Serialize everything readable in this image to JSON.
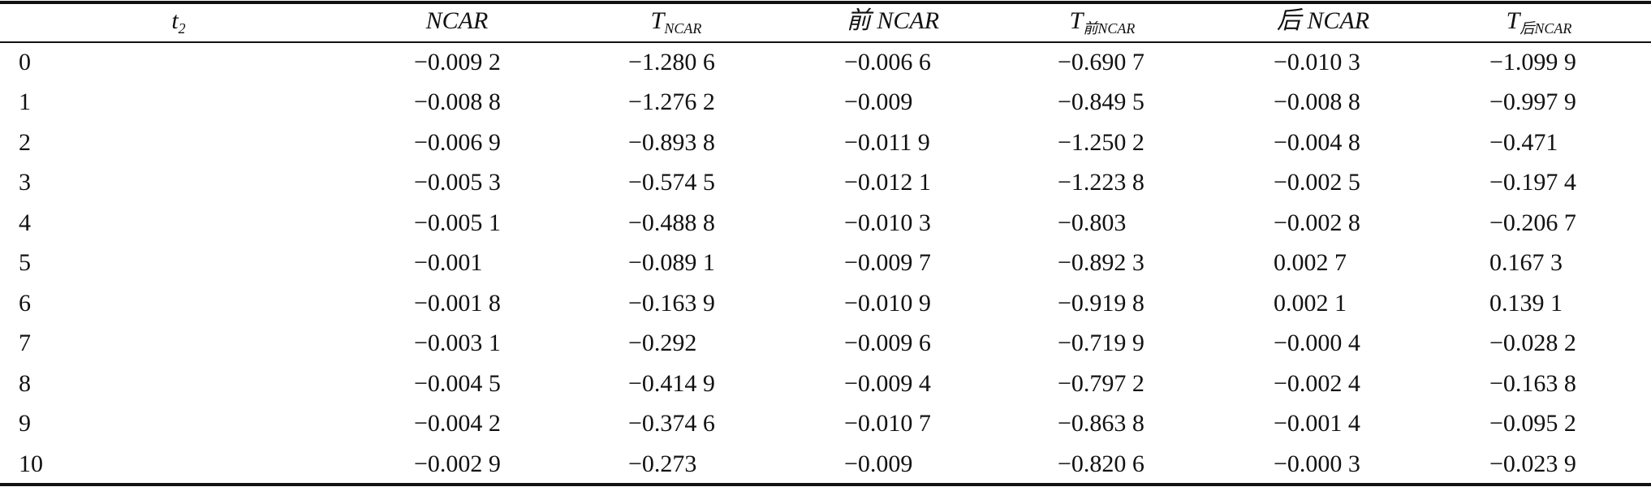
{
  "table": {
    "header": [
      {
        "text": "t",
        "sub": "2"
      },
      {
        "text": "NCAR"
      },
      {
        "text": "T",
        "sub": "NCAR"
      },
      {
        "text": "前 NCAR"
      },
      {
        "text": "T",
        "sub": "前NCAR"
      },
      {
        "text": "后 NCAR"
      },
      {
        "text": "T",
        "sub": "后NCAR"
      }
    ],
    "rows": [
      [
        "0",
        "−0.009 2",
        "−1.280 6",
        "−0.006 6",
        "−0.690 7",
        "−0.010 3",
        "−1.099 9"
      ],
      [
        "1",
        "−0.008 8",
        "−1.276 2",
        "−0.009",
        "−0.849 5",
        "−0.008 8",
        "−0.997 9"
      ],
      [
        "2",
        "−0.006 9",
        "−0.893 8",
        "−0.011 9",
        "−1.250 2",
        "−0.004 8",
        "−0.471"
      ],
      [
        "3",
        "−0.005 3",
        "−0.574 5",
        "−0.012 1",
        "−1.223 8",
        "−0.002 5",
        "−0.197 4"
      ],
      [
        "4",
        "−0.005 1",
        "−0.488 8",
        "−0.010 3",
        "−0.803",
        "−0.002 8",
        "−0.206 7"
      ],
      [
        "5",
        "−0.001",
        "−0.089 1",
        "−0.009 7",
        "−0.892 3",
        "0.002 7",
        "0.167 3"
      ],
      [
        "6",
        "−0.001 8",
        "−0.163 9",
        "−0.010 9",
        "−0.919 8",
        "0.002 1",
        "0.139 1"
      ],
      [
        "7",
        "−0.003 1",
        "−0.292",
        "−0.009 6",
        "−0.719 9",
        "−0.000 4",
        "−0.028 2"
      ],
      [
        "8",
        "−0.004 5",
        "−0.414 9",
        "−0.009 4",
        "−0.797 2",
        "−0.002 4",
        "−0.163 8"
      ],
      [
        "9",
        "−0.004 2",
        "−0.374 6",
        "−0.010 7",
        "−0.863 8",
        "−0.001 4",
        "−0.095 2"
      ],
      [
        "10",
        "−0.002 9",
        "−0.273",
        "−0.009",
        "−0.820 6",
        "−0.000 3",
        "−0.023 9"
      ]
    ]
  }
}
